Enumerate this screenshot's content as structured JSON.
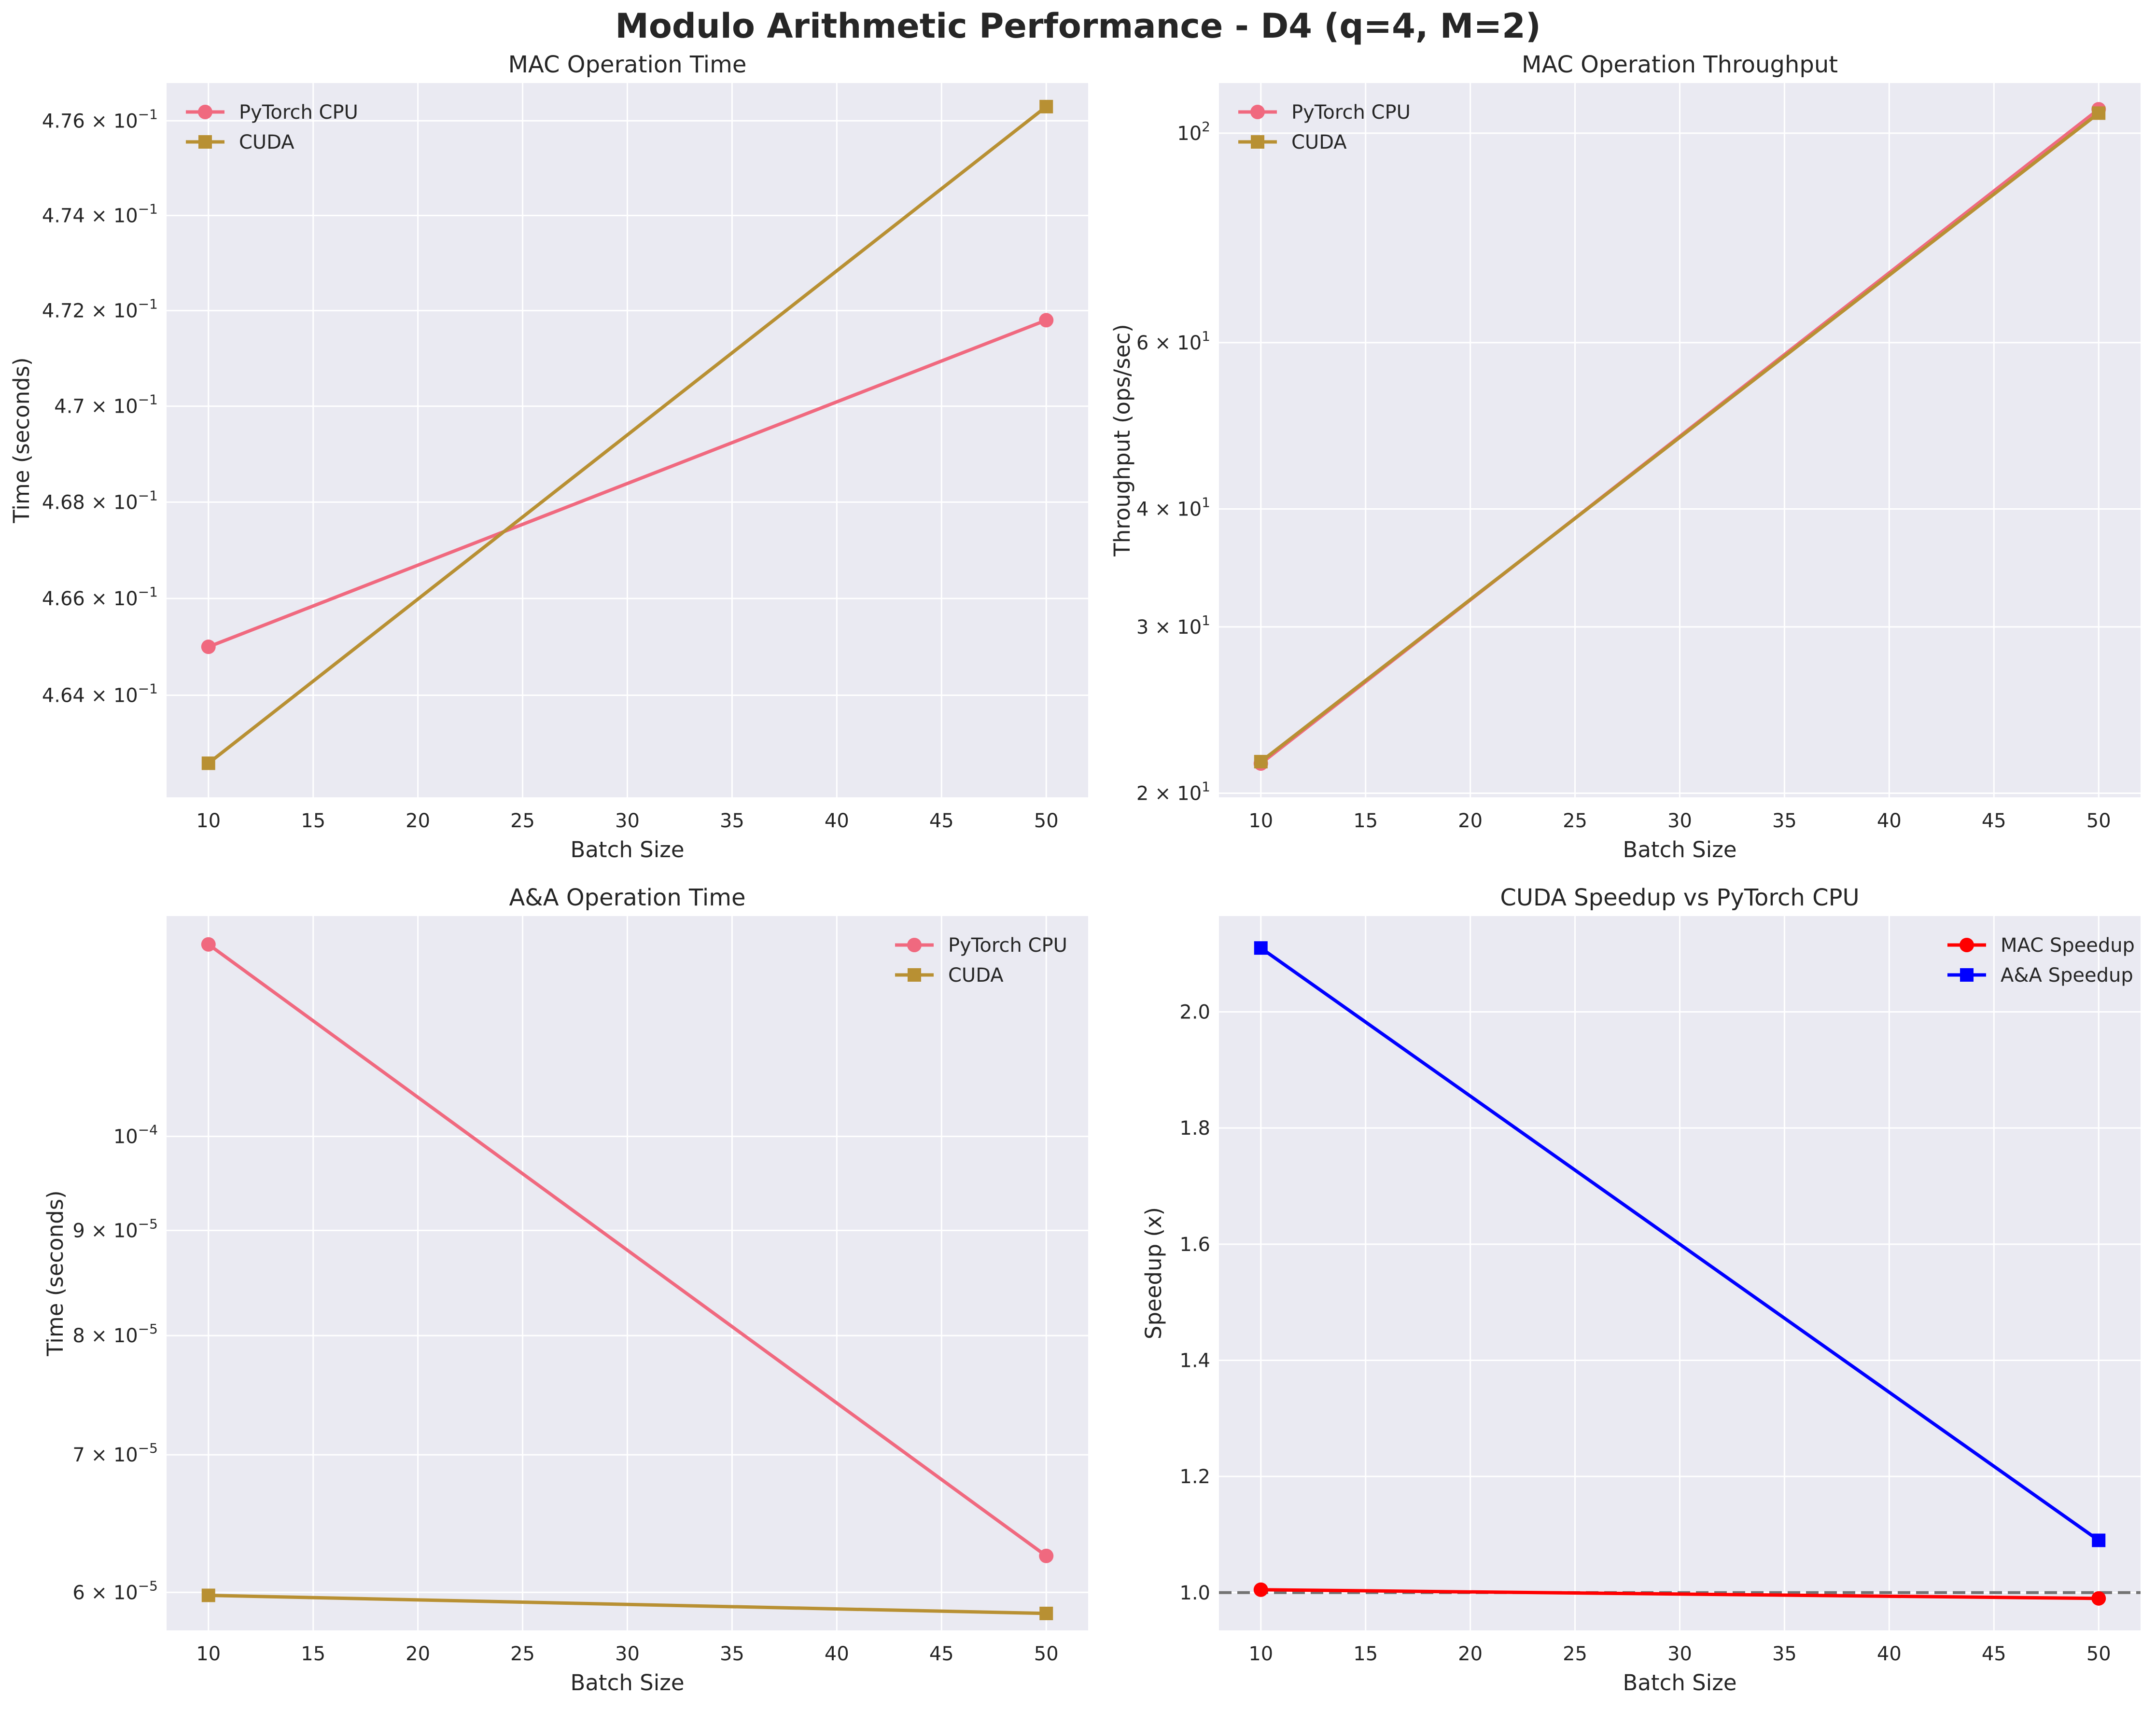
{
  "figure": {
    "title": "Modulo Arithmetic Performance - D4 (q=4, M=2)"
  },
  "colors": {
    "background": "#eaeaf2",
    "grid": "#ffffff",
    "pytorch_cpu": "#f0697f",
    "cuda": "#b89033",
    "mac_speedup": "#ff0000",
    "aa_speedup": "#0000ff",
    "baseline": "#737373"
  },
  "chart_data": [
    {
      "type": "line",
      "title": "MAC Operation Time",
      "xlabel": "Batch Size",
      "ylabel": "Time (seconds)",
      "yscale": "log",
      "x": [
        10,
        50
      ],
      "xlim": [
        8,
        52
      ],
      "ylim": [
        0.4619,
        0.4768
      ],
      "xticks": [
        10,
        15,
        20,
        25,
        30,
        35,
        40,
        45,
        50
      ],
      "yticks": [
        {
          "value": 0.464,
          "base": "4.64 × 10",
          "exp": "−1"
        },
        {
          "value": 0.466,
          "base": "4.66 × 10",
          "exp": "−1"
        },
        {
          "value": 0.468,
          "base": "4.68 × 10",
          "exp": "−1"
        },
        {
          "value": 0.47,
          "base": "4.7 × 10",
          "exp": "−1"
        },
        {
          "value": 0.472,
          "base": "4.72 × 10",
          "exp": "−1"
        },
        {
          "value": 0.474,
          "base": "4.74 × 10",
          "exp": "−1"
        },
        {
          "value": 0.476,
          "base": "4.76 × 10",
          "exp": "−1"
        }
      ],
      "legend": "upper-left",
      "series": [
        {
          "name": "PyTorch CPU",
          "values": [
            0.465,
            0.4718
          ],
          "color": "#f0697f",
          "marker": "circle"
        },
        {
          "name": "CUDA",
          "values": [
            0.4626,
            0.4763
          ],
          "color": "#b89033",
          "marker": "square"
        }
      ]
    },
    {
      "type": "line",
      "title": "MAC Operation Throughput",
      "xlabel": "Batch Size",
      "ylabel": "Throughput (ops/sec)",
      "yscale": "log",
      "x": [
        10,
        50
      ],
      "xlim": [
        8,
        52
      ],
      "ylim": [
        19.8,
        113
      ],
      "xticks": [
        10,
        15,
        20,
        25,
        30,
        35,
        40,
        45,
        50
      ],
      "yticks": [
        {
          "value": 20,
          "base": "2 × 10",
          "exp": "1"
        },
        {
          "value": 30,
          "base": "3 × 10",
          "exp": "1"
        },
        {
          "value": 40,
          "base": "4 × 10",
          "exp": "1"
        },
        {
          "value": 60,
          "base": "6 × 10",
          "exp": "1"
        },
        {
          "value": 100,
          "base": "10",
          "exp": "2"
        }
      ],
      "legend": "upper-left",
      "series": [
        {
          "name": "PyTorch CPU",
          "values": [
            21.5,
            106.0
          ],
          "color": "#f0697f",
          "marker": "circle"
        },
        {
          "name": "CUDA",
          "values": [
            21.6,
            105.0
          ],
          "color": "#b89033",
          "marker": "square"
        }
      ]
    },
    {
      "type": "line",
      "title": "A&A Operation Time",
      "xlabel": "Batch Size",
      "ylabel": "Time (seconds)",
      "yscale": "log",
      "x": [
        10,
        50
      ],
      "xlim": [
        8,
        52
      ],
      "ylim": [
        5.75e-05,
        0.000128
      ],
      "xticks": [
        10,
        15,
        20,
        25,
        30,
        35,
        40,
        45,
        50
      ],
      "yticks": [
        {
          "value": 6e-05,
          "base": "6 × 10",
          "exp": "−5"
        },
        {
          "value": 7e-05,
          "base": "7 × 10",
          "exp": "−5"
        },
        {
          "value": 8e-05,
          "base": "8 × 10",
          "exp": "−5"
        },
        {
          "value": 9e-05,
          "base": "9 × 10",
          "exp": "−5"
        },
        {
          "value": 0.0001,
          "base": "10",
          "exp": "−4"
        }
      ],
      "legend": "upper-right",
      "series": [
        {
          "name": "PyTorch CPU",
          "values": [
            0.000124,
            6.25e-05
          ],
          "color": "#f0697f",
          "marker": "circle"
        },
        {
          "name": "CUDA",
          "values": [
            5.98e-05,
            5.86e-05
          ],
          "color": "#b89033",
          "marker": "square"
        }
      ]
    },
    {
      "type": "line",
      "title": "CUDA Speedup vs PyTorch CPU",
      "xlabel": "Batch Size",
      "ylabel": "Speedup (x)",
      "yscale": "linear",
      "x": [
        10,
        50
      ],
      "xlim": [
        8,
        52
      ],
      "ylim": [
        0.935,
        2.165
      ],
      "xticks": [
        10,
        15,
        20,
        25,
        30,
        35,
        40,
        45,
        50
      ],
      "yticks": [
        {
          "value": 1.0,
          "base": "1.0",
          "exp": ""
        },
        {
          "value": 1.2,
          "base": "1.2",
          "exp": ""
        },
        {
          "value": 1.4,
          "base": "1.4",
          "exp": ""
        },
        {
          "value": 1.6,
          "base": "1.6",
          "exp": ""
        },
        {
          "value": 1.8,
          "base": "1.8",
          "exp": ""
        },
        {
          "value": 2.0,
          "base": "2.0",
          "exp": ""
        }
      ],
      "legend": "upper-right",
      "hline": 1.0,
      "series": [
        {
          "name": "MAC Speedup",
          "values": [
            1.005,
            0.99
          ],
          "color": "#ff0000",
          "marker": "circle"
        },
        {
          "name": "A&A Speedup",
          "values": [
            2.11,
            1.09
          ],
          "color": "#0000ff",
          "marker": "square"
        }
      ]
    }
  ]
}
